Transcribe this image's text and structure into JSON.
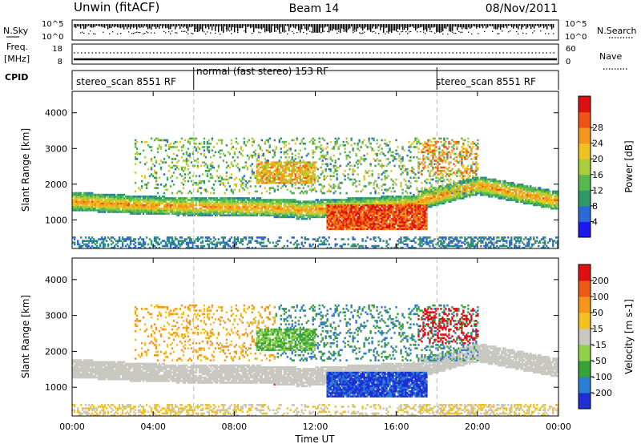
{
  "header": {
    "station": "Unwin (fitACF)",
    "beam": "Beam 14",
    "date": "08/Nov/2011"
  },
  "top_panels": {
    "nsky_label": "N.Sky",
    "nsearch_label": "N.Search",
    "nsky_ticks": [
      "10^5",
      "10^0"
    ],
    "freq_label": "Freq.",
    "freq_unit": "[MHz]",
    "freq_ticks": [
      "18",
      "8"
    ],
    "nave_label": "Nave",
    "nave_ticks": [
      "60",
      "0"
    ],
    "cpid_label": "CPID",
    "cpid_segments": [
      {
        "label": "stereo_scan 8551 RF",
        "start_h": 0,
        "end_h": 6
      },
      {
        "label": "normal (fast stereo) 153 RF",
        "start_h": 6,
        "end_h": 18
      },
      {
        "label": "stereo_scan 8551 RF",
        "start_h": 18,
        "end_h": 24
      }
    ]
  },
  "chart_data": [
    {
      "type": "heatmap",
      "title": "Power",
      "xlabel": "Time UT",
      "ylabel": "Slant Range [km]",
      "xlim": [
        0,
        24
      ],
      "ylim": [
        200,
        4600
      ],
      "x_ticks": [
        "00:00",
        "04:00",
        "08:00",
        "12:00",
        "16:00",
        "20:00",
        "00:00"
      ],
      "y_ticks": [
        1000,
        2000,
        3000,
        4000
      ],
      "colorbar": {
        "label": "Power [dB]",
        "ticks": [
          4,
          8,
          12,
          16,
          20,
          24,
          28
        ],
        "range": [
          0,
          32
        ],
        "colors": [
          "#1a1aee",
          "#2a6ad8",
          "#2e9a6a",
          "#55b94e",
          "#a8cf3a",
          "#f0c21e",
          "#f3961a",
          "#ef5316",
          "#dd0f0f"
        ]
      }
    },
    {
      "type": "heatmap",
      "title": "Velocity",
      "xlabel": "Time UT",
      "ylabel": "Slant Range [km]",
      "xlim": [
        0,
        24
      ],
      "ylim": [
        200,
        4600
      ],
      "x_ticks": [
        "00:00",
        "04:00",
        "08:00",
        "12:00",
        "16:00",
        "20:00",
        "00:00"
      ],
      "y_ticks": [
        1000,
        2000,
        3000,
        4000
      ],
      "colorbar": {
        "label": "Velocity [m s-1]",
        "ticks": [
          "200",
          "100",
          "50",
          "15",
          "-15",
          "-50",
          "-100",
          "-200"
        ],
        "colors": [
          "#1f2fd6",
          "#2a7fd4",
          "#35a33a",
          "#8fd24a",
          "#c8c8c0",
          "#f3c21e",
          "#f5961a",
          "#ee5a16",
          "#e01010"
        ]
      }
    }
  ]
}
